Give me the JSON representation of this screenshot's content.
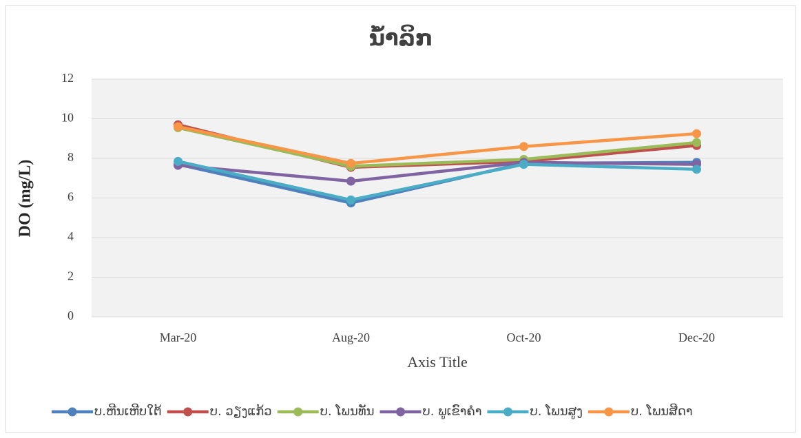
{
  "chart_data": {
    "type": "line",
    "title": "ນ້ຳລິກ",
    "y_label": "DO (mg/L)",
    "x_label": "Axis Title",
    "categories": [
      "Mar-20",
      "Aug-20",
      "Oct-20",
      "Dec-20"
    ],
    "series": [
      {
        "name": "ບ.ຫີນເຫີບໃຕ້",
        "color": "#4f81bd",
        "values": [
          7.7,
          5.75,
          7.75,
          7.8
        ]
      },
      {
        "name": "ບ. ວຽງແກ້ວ",
        "color": "#c0504d",
        "values": [
          9.7,
          7.55,
          7.85,
          8.65
        ]
      },
      {
        "name": "ບ. ໂພນທັນ",
        "color": "#9bbb59",
        "values": [
          9.55,
          7.6,
          7.95,
          8.8
        ]
      },
      {
        "name": "ບ. ພູເຂົາຄຳ",
        "color": "#8064a2",
        "values": [
          7.65,
          6.85,
          7.8,
          7.7
        ]
      },
      {
        "name": "ບ. ໂພນສູງ",
        "color": "#4bacc6",
        "values": [
          7.85,
          5.9,
          7.7,
          7.45
        ]
      },
      {
        "name": "ບ. ໂພນສີດາ",
        "color": "#f79646",
        "values": [
          9.6,
          7.75,
          8.6,
          9.25
        ]
      }
    ],
    "ylim": [
      0,
      12
    ],
    "yticks": [
      0,
      2,
      4,
      6,
      8,
      10,
      12
    ],
    "grid": true,
    "legend": "bottom"
  }
}
